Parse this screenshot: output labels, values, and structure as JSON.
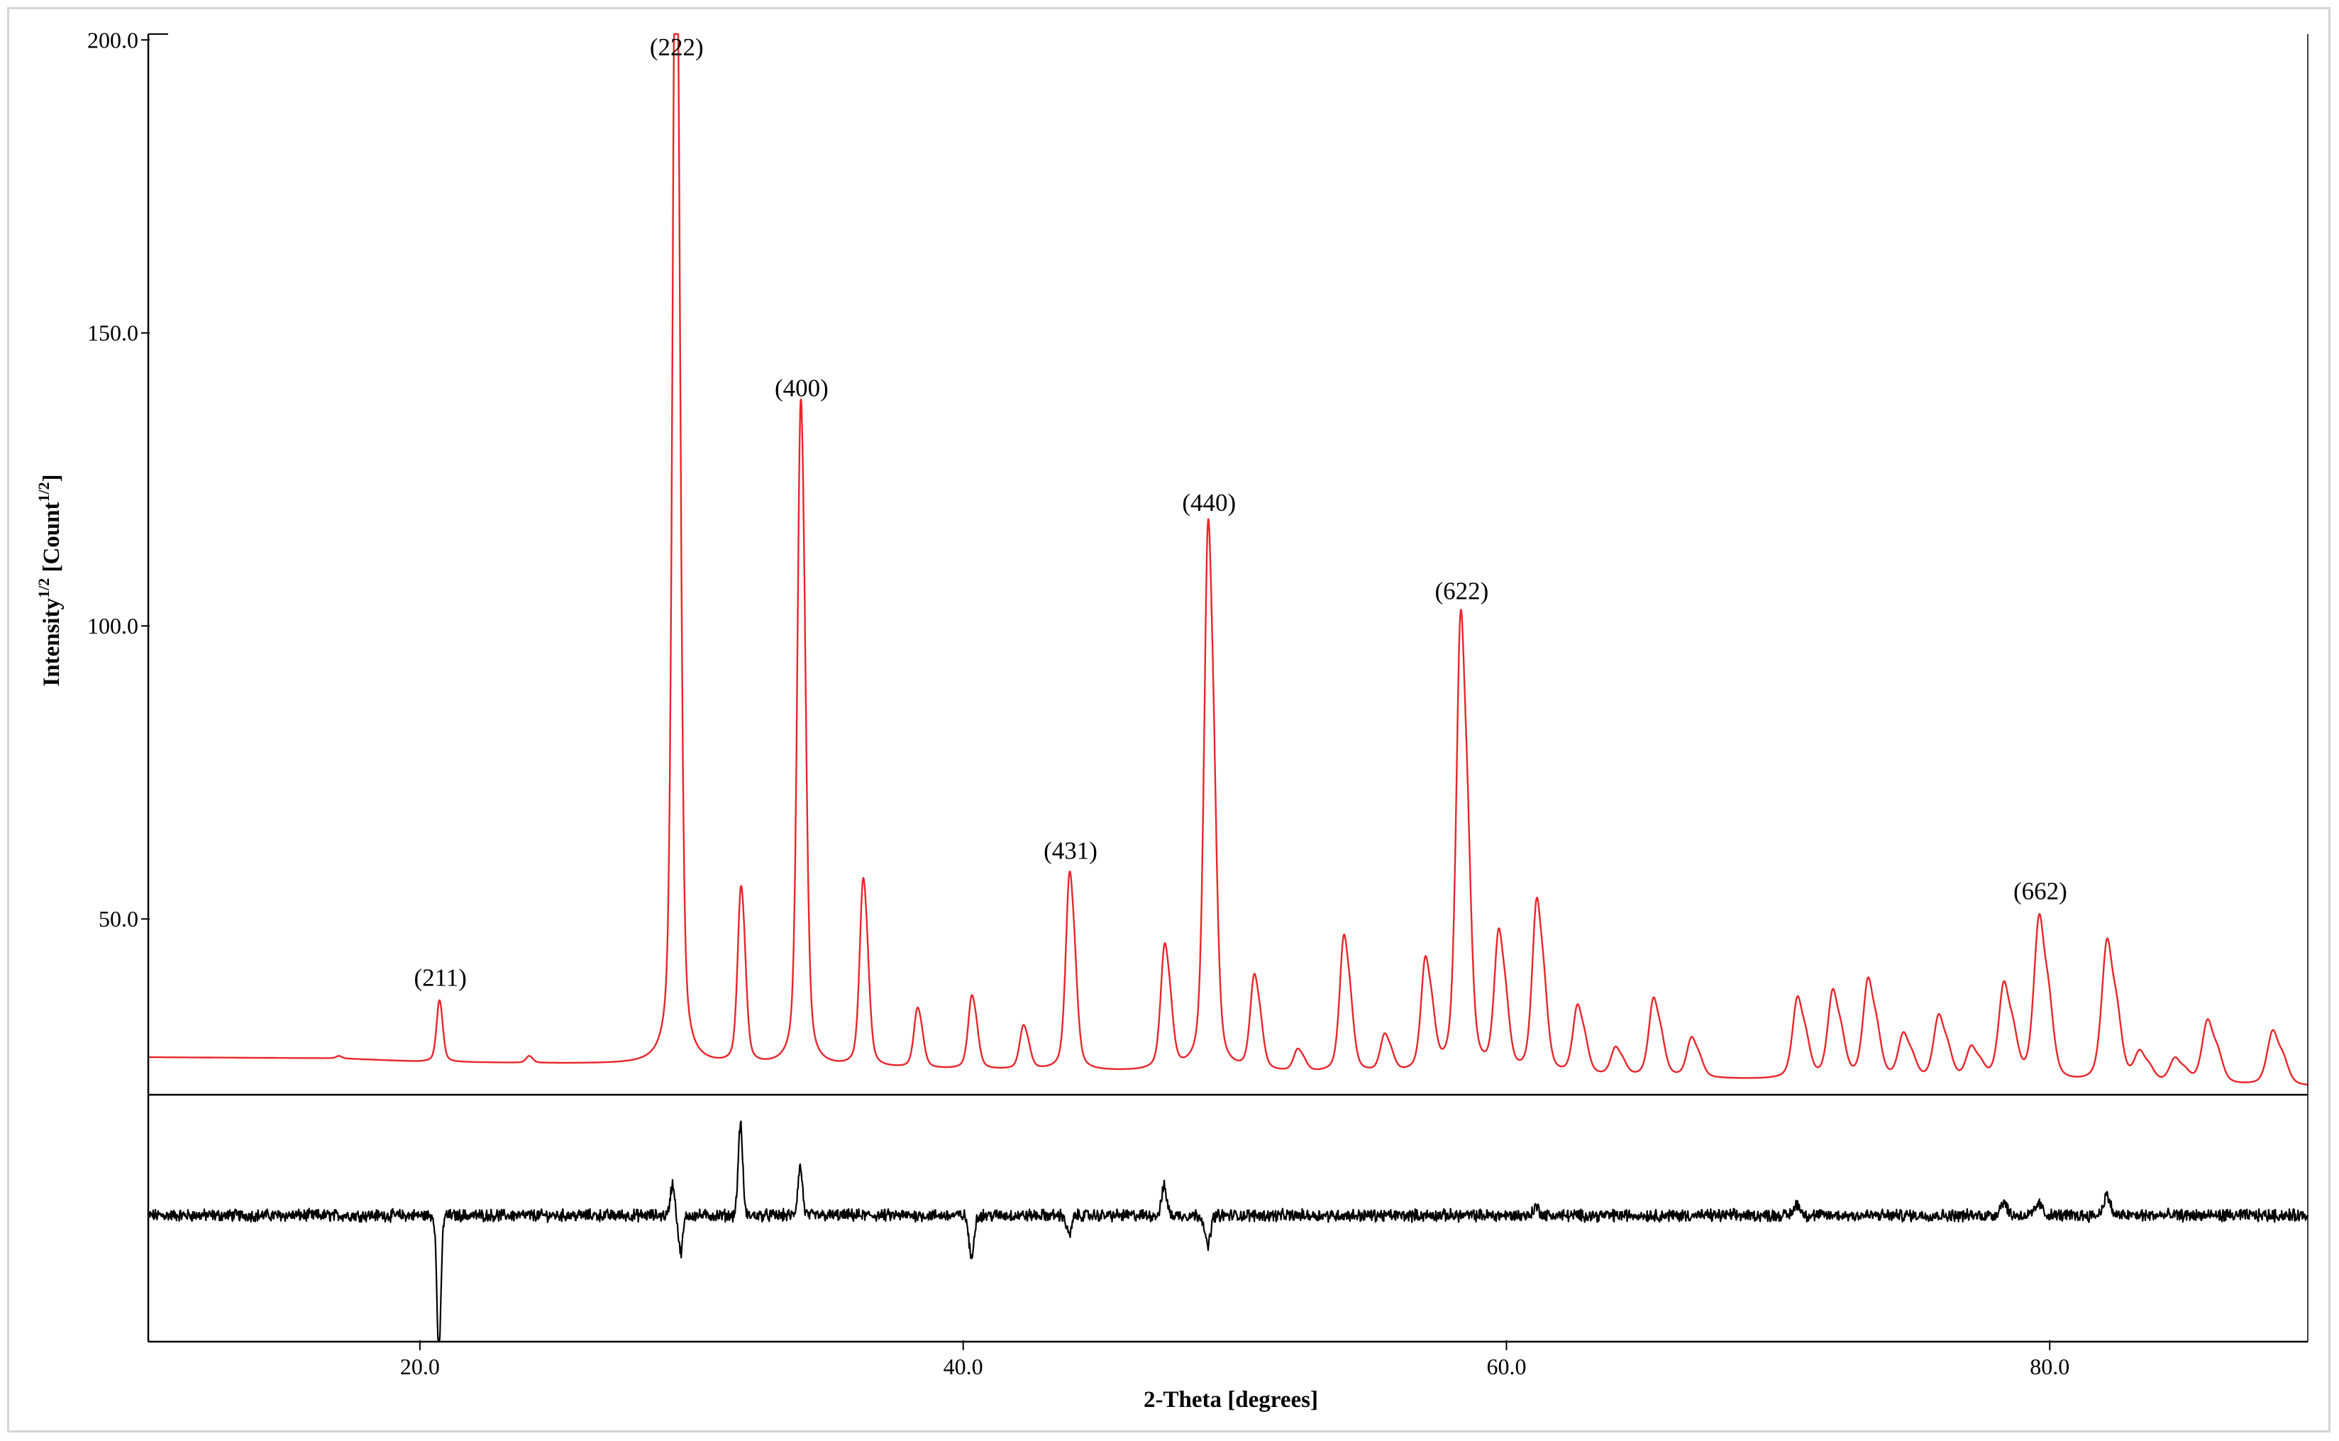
{
  "chart_data": {
    "type": "line",
    "xlabel": "2-Theta [degrees]",
    "ylabel": {
      "base": "Intensity",
      "exp1": "1/2",
      "mid": " [Count",
      "exp2": "1/2",
      "end": "]"
    },
    "xlim": [
      10,
      89.5
    ],
    "ylim": [
      20,
      201
    ],
    "x_ticks": [
      {
        "value": 20,
        "label": "20.0"
      },
      {
        "value": 40,
        "label": "40.0"
      },
      {
        "value": 60,
        "label": "60.0"
      },
      {
        "value": 80,
        "label": "80.0"
      }
    ],
    "y_ticks": [
      {
        "value": 50,
        "label": "50.0"
      },
      {
        "value": 100,
        "label": "100.0"
      },
      {
        "value": 150,
        "label": "150.0"
      },
      {
        "value": 200,
        "label": "200.0"
      }
    ],
    "main_series": {
      "color": "#e8262b",
      "baseline": [
        [
          10,
          26.4
        ],
        [
          17,
          26.2
        ],
        [
          20,
          25.6
        ],
        [
          27,
          25.2
        ],
        [
          40,
          24.2
        ],
        [
          55,
          23.4
        ],
        [
          68,
          22.6
        ],
        [
          78,
          22.0
        ],
        [
          89.5,
          21.4
        ]
      ],
      "peaks": [
        {
          "x": 17.0,
          "height": 0.3
        },
        {
          "x": 20.7,
          "height": 8.0
        },
        {
          "x": 24.0,
          "height": 0.9
        },
        {
          "x": 29.4,
          "height": 168.5
        },
        {
          "x": 31.8,
          "height": 24.3
        },
        {
          "x": 34.0,
          "height": 92.5
        },
        {
          "x": 36.3,
          "height": 26.4
        },
        {
          "x": 38.3,
          "height": 8.5
        },
        {
          "x": 40.3,
          "height": 10.5
        },
        {
          "x": 42.2,
          "height": 6.3
        },
        {
          "x": 43.9,
          "height": 28.6
        },
        {
          "x": 47.4,
          "height": 18.2
        },
        {
          "x": 49.0,
          "height": 80.6
        },
        {
          "x": 50.7,
          "height": 14.0
        },
        {
          "x": 52.3,
          "height": 3.3
        },
        {
          "x": 54.0,
          "height": 20.4
        },
        {
          "x": 55.5,
          "height": 5.6
        },
        {
          "x": 57.0,
          "height": 16.8
        },
        {
          "x": 58.3,
          "height": 69.0
        },
        {
          "x": 59.7,
          "height": 21.0
        },
        {
          "x": 61.1,
          "height": 26.3
        },
        {
          "x": 62.6,
          "height": 10.5
        },
        {
          "x": 64.0,
          "height": 4.3
        },
        {
          "x": 65.4,
          "height": 12.0
        },
        {
          "x": 66.8,
          "height": 6.1
        },
        {
          "x": 70.7,
          "height": 12.5
        },
        {
          "x": 72.0,
          "height": 13.5
        },
        {
          "x": 73.3,
          "height": 15.4
        },
        {
          "x": 74.6,
          "height": 7.0
        },
        {
          "x": 75.9,
          "height": 10.0
        },
        {
          "x": 77.1,
          "height": 5.0
        },
        {
          "x": 78.3,
          "height": 15.0
        },
        {
          "x": 79.6,
          "height": 25.6
        },
        {
          "x": 82.1,
          "height": 22.2
        },
        {
          "x": 83.3,
          "height": 4.6
        },
        {
          "x": 84.6,
          "height": 3.8
        },
        {
          "x": 85.8,
          "height": 10.0
        },
        {
          "x": 88.2,
          "height": 8.6
        }
      ]
    },
    "peak_labels": [
      {
        "x": 20.7,
        "label": "(211)"
      },
      {
        "x": 29.4,
        "label": "(222)"
      },
      {
        "x": 34.0,
        "label": "(400)"
      },
      {
        "x": 43.9,
        "label": "(431)"
      },
      {
        "x": 49.0,
        "label": "(440)"
      },
      {
        "x": 58.3,
        "label": "(622)"
      },
      {
        "x": 79.6,
        "label": "(662)"
      }
    ],
    "difference_series": {
      "color": "#000000",
      "features": [
        {
          "x": 20.7,
          "amplitude": -1.0
        },
        {
          "x": 29.3,
          "amplitude": 0.22
        },
        {
          "x": 29.6,
          "amplitude": -0.26
        },
        {
          "x": 31.8,
          "amplitude": 0.64
        },
        {
          "x": 34.0,
          "amplitude": 0.34
        },
        {
          "x": 40.3,
          "amplitude": -0.3
        },
        {
          "x": 43.9,
          "amplitude": -0.14
        },
        {
          "x": 47.4,
          "amplitude": 0.2
        },
        {
          "x": 49.0,
          "amplitude": -0.22
        },
        {
          "x": 61.1,
          "amplitude": 0.06
        },
        {
          "x": 70.7,
          "amplitude": 0.08
        },
        {
          "x": 78.3,
          "amplitude": 0.1
        },
        {
          "x": 79.6,
          "amplitude": 0.08
        },
        {
          "x": 82.1,
          "amplitude": 0.14
        }
      ]
    },
    "grid": false,
    "legend": "none"
  }
}
